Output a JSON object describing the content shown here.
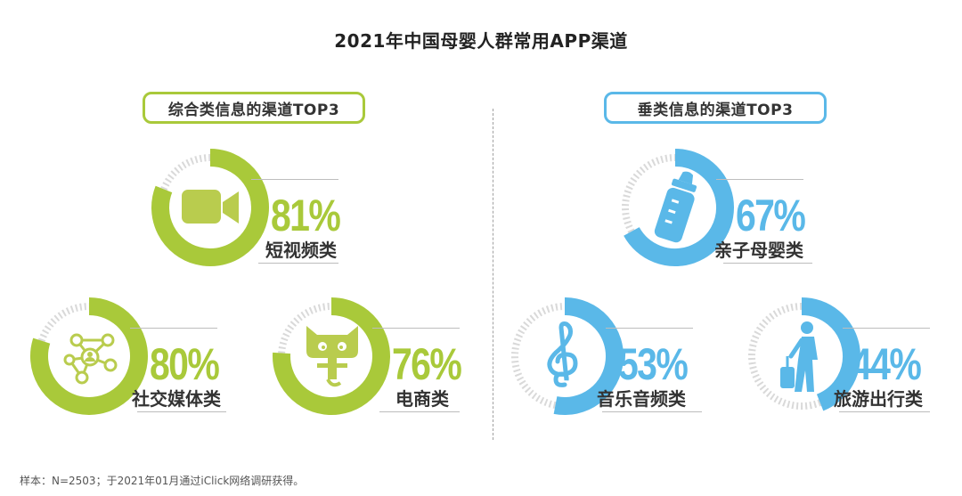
{
  "title": "2021年中国母婴人群常用APP渠道",
  "note": "样本：N=2503；于2021年01月通过iClick网络调研获得。",
  "colors": {
    "green": "#a9c93a",
    "green_icon": "#b9cc4e",
    "blue": "#5ab8e8",
    "track": "#d9d9d9"
  },
  "chart_data": [
    {
      "type": "pie",
      "title": "综合类信息的渠道TOP3",
      "color": "#a9c93a",
      "categories": [
        "短视频类",
        "社交媒体类",
        "电商类"
      ],
      "values": [
        81,
        80,
        76
      ],
      "value_labels": [
        "81%",
        "80%",
        "76%"
      ],
      "icons": [
        "video-camera-icon",
        "social-network-icon",
        "tmall-cat-icon"
      ]
    },
    {
      "type": "pie",
      "title": "垂类信息的渠道TOP3",
      "color": "#5ab8e8",
      "categories": [
        "亲子母婴类",
        "音乐音频类",
        "旅游出行类"
      ],
      "values": [
        67,
        53,
        44
      ],
      "value_labels": [
        "67%",
        "53%",
        "44%"
      ],
      "icons": [
        "baby-bottle-icon",
        "treble-clef-icon",
        "traveler-icon"
      ]
    }
  ]
}
